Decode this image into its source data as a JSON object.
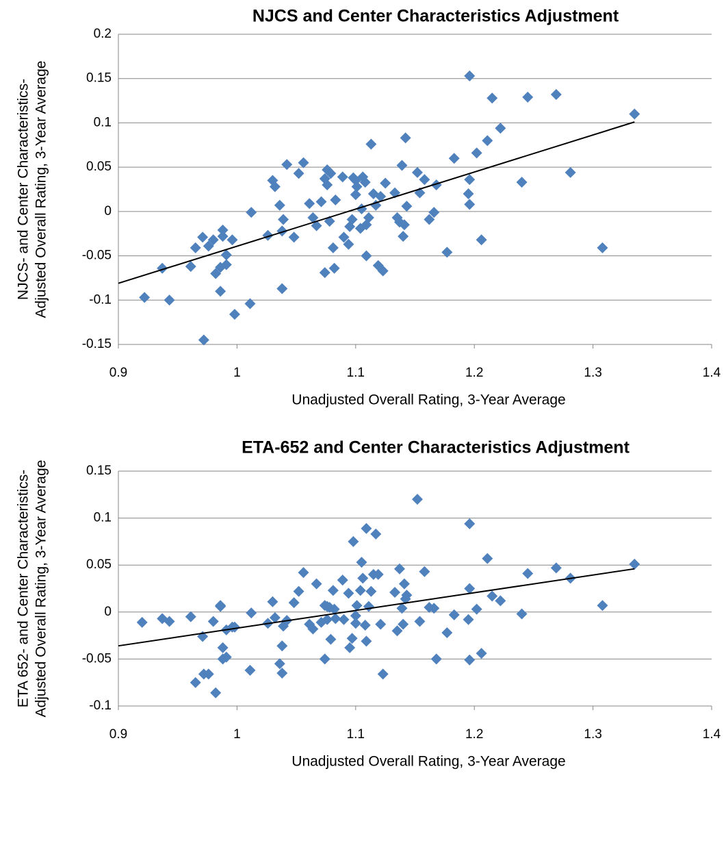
{
  "chart_data": [
    {
      "type": "scatter",
      "title": "NJCS and Center Characteristics Adjustment",
      "x_label": "Unadjusted Overall Rating, 3-Year Average",
      "y_label": [
        "NJCS- and Center Characteristics-",
        "Adjusted Overall Rating, 3-Year Average"
      ],
      "color": "#4f81bd",
      "grid": true,
      "xlim": [
        0.9,
        1.4
      ],
      "xticks": [
        0.9,
        1,
        1.1,
        1.2,
        1.3,
        1.4
      ],
      "ylim": [
        -0.15,
        0.2
      ],
      "yticks": [
        -0.15,
        -0.1,
        -0.05,
        0,
        0.05,
        0.1,
        0.15,
        0.2
      ],
      "x": [
        0.922,
        0.937,
        0.943,
        0.961,
        0.965,
        0.971,
        0.972,
        0.976,
        0.98,
        0.982,
        0.986,
        0.986,
        0.988,
        0.988,
        0.991,
        0.991,
        0.996,
        0.998,
        1.011,
        1.012,
        1.026,
        1.03,
        1.032,
        1.036,
        1.038,
        1.039,
        1.038,
        1.042,
        1.048,
        1.052,
        1.056,
        1.061,
        1.064,
        1.067,
        1.071,
        1.074,
        1.074,
        1.076,
        1.076,
        1.078,
        1.079,
        1.081,
        1.082,
        1.083,
        1.089,
        1.09,
        1.094,
        1.095,
        1.097,
        1.098,
        1.1,
        1.1,
        1.101,
        1.104,
        1.105,
        1.106,
        1.108,
        1.109,
        1.109,
        1.111,
        1.113,
        1.115,
        1.117,
        1.119,
        1.121,
        1.123,
        1.125,
        1.133,
        1.135,
        1.137,
        1.139,
        1.14,
        1.141,
        1.142,
        1.143,
        1.152,
        1.154,
        1.158,
        1.162,
        1.166,
        1.168,
        1.177,
        1.183,
        1.195,
        1.196,
        1.196,
        1.196,
        1.202,
        1.206,
        1.211,
        1.215,
        1.222,
        1.24,
        1.245,
        1.269,
        1.281,
        1.308,
        1.335
      ],
      "values": [
        -0.097,
        -0.064,
        -0.1,
        -0.062,
        -0.041,
        -0.029,
        -0.145,
        -0.039,
        -0.032,
        -0.07,
        -0.063,
        -0.09,
        -0.021,
        -0.028,
        -0.049,
        -0.06,
        -0.032,
        -0.116,
        -0.104,
        -0.001,
        -0.027,
        0.035,
        0.028,
        0.007,
        -0.022,
        -0.009,
        -0.087,
        0.053,
        -0.029,
        0.043,
        0.055,
        0.009,
        -0.007,
        -0.016,
        0.011,
        0.037,
        -0.069,
        0.03,
        0.047,
        -0.011,
        0.043,
        -0.041,
        -0.064,
        0.013,
        0.039,
        -0.029,
        -0.037,
        -0.017,
        -0.009,
        0.038,
        0.019,
        0.035,
        0.028,
        -0.019,
        0.003,
        0.039,
        0.033,
        -0.015,
        -0.05,
        -0.007,
        0.076,
        0.02,
        0.007,
        -0.061,
        0.017,
        -0.067,
        0.032,
        0.021,
        -0.007,
        -0.012,
        0.052,
        -0.028,
        -0.015,
        0.083,
        0.006,
        0.044,
        0.021,
        0.036,
        -0.009,
        -0.001,
        0.03,
        -0.046,
        0.06,
        0.02,
        0.036,
        0.008,
        0.153,
        0.066,
        -0.032,
        0.08,
        0.128,
        0.094,
        0.033,
        0.129,
        0.132,
        0.044,
        -0.041,
        0.11
      ],
      "trendline": {
        "x": [
          0.9,
          1.335
        ],
        "values": [
          -0.081,
          0.101
        ],
        "color": "#000000"
      }
    },
    {
      "type": "scatter",
      "title": "ETA-652 and Center Characteristics Adjustment",
      "x_label": "Unadjusted Overall Rating, 3-Year Average",
      "y_label": [
        "ETA 652- and Center Characteristics-",
        "Adjusted Overall Rating, 3-Year Average"
      ],
      "color": "#4f81bd",
      "grid": true,
      "xlim": [
        0.9,
        1.4
      ],
      "xticks": [
        0.9,
        1,
        1.1,
        1.2,
        1.3,
        1.4
      ],
      "ylim": [
        -0.1,
        0.15
      ],
      "yticks": [
        -0.1,
        -0.05,
        0,
        0.05,
        0.1,
        0.15
      ],
      "x": [
        0.92,
        0.937,
        0.943,
        0.961,
        0.965,
        0.971,
        0.972,
        0.976,
        0.98,
        0.982,
        0.986,
        0.986,
        0.988,
        0.988,
        0.991,
        0.991,
        0.996,
        0.998,
        1.011,
        1.012,
        1.026,
        1.03,
        1.032,
        1.036,
        1.038,
        1.039,
        1.038,
        1.042,
        1.048,
        1.052,
        1.056,
        1.061,
        1.064,
        1.067,
        1.071,
        1.074,
        1.074,
        1.076,
        1.076,
        1.078,
        1.079,
        1.081,
        1.082,
        1.083,
        1.089,
        1.09,
        1.094,
        1.095,
        1.097,
        1.098,
        1.1,
        1.1,
        1.101,
        1.104,
        1.105,
        1.106,
        1.108,
        1.109,
        1.109,
        1.111,
        1.113,
        1.115,
        1.117,
        1.119,
        1.121,
        1.123,
        1.133,
        1.135,
        1.137,
        1.139,
        1.14,
        1.141,
        1.142,
        1.143,
        1.152,
        1.154,
        1.158,
        1.162,
        1.166,
        1.168,
        1.177,
        1.183,
        1.195,
        1.196,
        1.196,
        1.196,
        1.202,
        1.206,
        1.211,
        1.215,
        1.222,
        1.24,
        1.245,
        1.269,
        1.281,
        1.308,
        1.335
      ],
      "values": [
        -0.011,
        -0.007,
        -0.01,
        -0.005,
        -0.075,
        -0.026,
        -0.066,
        -0.066,
        -0.01,
        -0.086,
        0.007,
        0.006,
        -0.038,
        -0.05,
        -0.048,
        -0.019,
        -0.016,
        -0.016,
        -0.062,
        -0.001,
        -0.012,
        0.011,
        -0.006,
        -0.055,
        -0.036,
        -0.015,
        -0.065,
        -0.009,
        0.01,
        0.022,
        0.042,
        -0.013,
        -0.018,
        0.03,
        -0.011,
        0.007,
        -0.05,
        0.006,
        -0.008,
        0.005,
        -0.029,
        0.023,
        0.003,
        -0.007,
        0.034,
        -0.008,
        0.02,
        -0.038,
        -0.028,
        0.075,
        -0.012,
        -0.004,
        0.007,
        0.023,
        0.053,
        0.036,
        -0.014,
        0.089,
        -0.031,
        0.006,
        0.022,
        0.04,
        0.083,
        0.04,
        -0.013,
        -0.066,
        0.021,
        -0.02,
        0.046,
        0.004,
        -0.013,
        0.03,
        0.014,
        0.018,
        0.12,
        -0.01,
        0.043,
        0.005,
        0.004,
        -0.05,
        -0.022,
        -0.003,
        -0.008,
        0.025,
        -0.051,
        0.094,
        0.003,
        -0.044,
        0.057,
        0.017,
        0.012,
        -0.002,
        0.041,
        0.047,
        0.036,
        0.007,
        0.051
      ],
      "trendline": {
        "x": [
          0.9,
          1.335
        ],
        "values": [
          -0.036,
          0.046
        ],
        "color": "#000000"
      }
    }
  ]
}
